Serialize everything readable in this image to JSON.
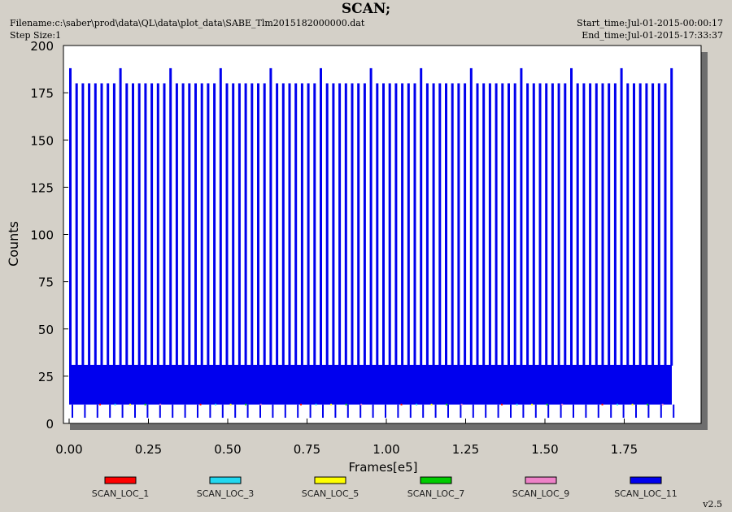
{
  "header": {
    "title": "SCAN;",
    "filename": "Filename:c:\\saber\\prod\\data\\QL\\data\\plot_data\\SABE_Tlm2015182000000.dat",
    "step_size": "Step Size:1",
    "start_time": "Start_time:Jul-01-2015-00:00:17",
    "end_time": "End_time:Jul-01-2015-17:33:37",
    "version": "v2.5"
  },
  "chart_data": {
    "type": "line",
    "title": "SCAN;",
    "xlabel": "Frames[e5]",
    "ylabel": "Counts",
    "xlim": [
      0,
      2.0
    ],
    "ylim": [
      0,
      200
    ],
    "x_ticks": [
      "0.00",
      "0.25",
      "0.50",
      "0.75",
      "1.00",
      "1.25",
      "1.50",
      "1.75"
    ],
    "y_ticks": [
      "0",
      "25",
      "50",
      "75",
      "100",
      "125",
      "150",
      "175",
      "200"
    ],
    "grid": false,
    "legend_position": "bottom",
    "data_x_range": [
      0.0,
      1.9
    ],
    "series": [
      {
        "name": "SCAN_LOC_1",
        "color": "#ff0000",
        "y_range": [
          0,
          30
        ]
      },
      {
        "name": "SCAN_LOC_3",
        "color": "#22d8f0",
        "y_range": [
          0,
          30
        ]
      },
      {
        "name": "SCAN_LOC_5",
        "color": "#ffff00",
        "y_range": [
          0,
          30
        ]
      },
      {
        "name": "SCAN_LOC_7",
        "color": "#00cc00",
        "y_range": [
          0,
          30
        ]
      },
      {
        "name": "SCAN_LOC_9",
        "color": "#ee82c8",
        "y_range": [
          0,
          30
        ]
      },
      {
        "name": "SCAN_LOC_11",
        "color": "#0000ee",
        "y_range": [
          0,
          188
        ],
        "dense_band": [
          10,
          31
        ],
        "peak_level": 180,
        "max_level": 188
      }
    ]
  }
}
